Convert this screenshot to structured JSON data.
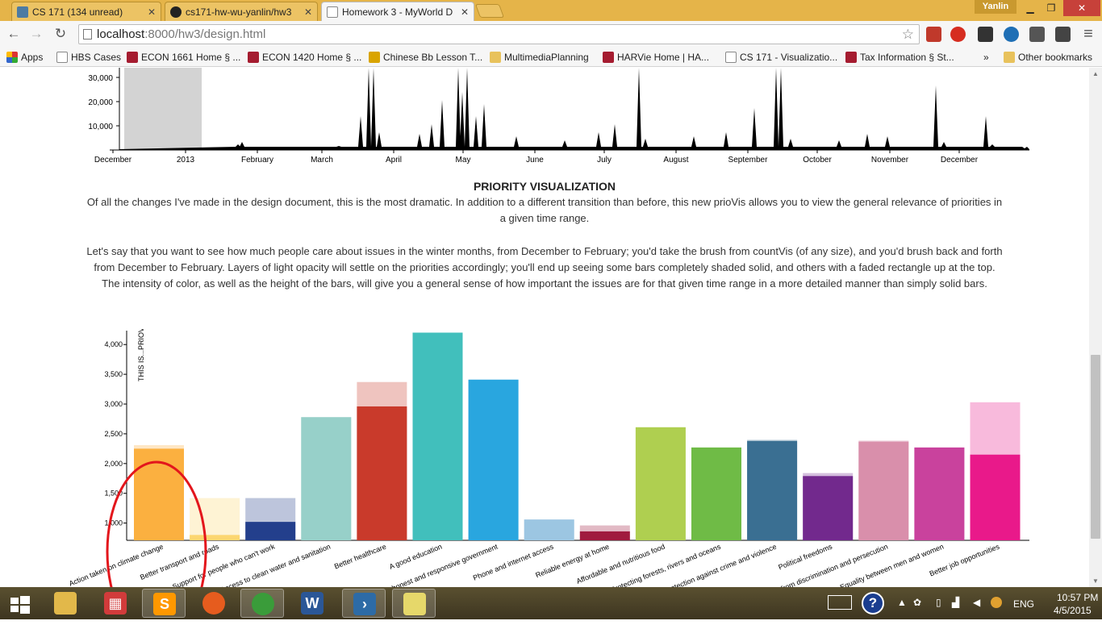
{
  "tabs": [
    {
      "label": "CS 171 (134 unread)",
      "icon": "piazza-icon",
      "color": "#4d7ba3"
    },
    {
      "label": "cs171-hw-wu-yanlin/hw3",
      "icon": "github-icon",
      "color": "#222222"
    },
    {
      "label": "Homework 3 - MyWorld D",
      "icon": "page-icon",
      "color": "#ffffff"
    }
  ],
  "window": {
    "user": "Yanlin",
    "minimize": "▁",
    "maximize": "❐",
    "close": "✕"
  },
  "toolbar": {
    "back": "←",
    "forward": "→",
    "reload": "↻",
    "url_host": "localhost",
    "url_path": ":8000/hw3/design.html",
    "star": "☆",
    "menu": "≡"
  },
  "bookmarks": [
    {
      "label": "Apps",
      "icon": "apps-grid-icon"
    },
    {
      "label": "HBS Cases",
      "icon": "page-icon"
    },
    {
      "label": "ECON 1661 Home § ...",
      "icon": "harvard-shield-icon"
    },
    {
      "label": "ECON 1420 Home § ...",
      "icon": "harvard-shield-icon"
    },
    {
      "label": "Chinese Bb Lesson T...",
      "icon": "trophy-icon"
    },
    {
      "label": "MultimediaPlanning",
      "icon": "folder-icon"
    },
    {
      "label": "HARVie Home | HA...",
      "icon": "harvard-shield-icon"
    },
    {
      "label": "CS 171 - Visualizatio...",
      "icon": "page-icon"
    },
    {
      "label": "Tax Information § St...",
      "icon": "harvard-shield-icon"
    }
  ],
  "bookmarks_overflow": "»",
  "other_bookmarks": "Other bookmarks",
  "count_chart": {
    "y_ticks": [
      "30,000",
      "20,000",
      "10,000"
    ],
    "x_ticks": [
      "December",
      "2013",
      "February",
      "March",
      "April",
      "May",
      "June",
      "July",
      "August",
      "September",
      "October",
      "November",
      "December"
    ],
    "brush_color": "#d3d3d3"
  },
  "priority": {
    "title": "PRIORITY VISUALIZATION",
    "paragraph1": "Of all the changes I've made in the design document, this is the most dramatic. In addition to a different transition than before, this new prioVis allows you to view the general relevance of priorities in a given time range.",
    "paragraph2": "Let's say that you want to see how much people care about issues in the winter months, from December to February; you'd take the brush from countVis (of any size), and you'd brush back and forth from December to February. Layers of light opacity will settle on the priorities accordingly; you'll end up seeing some bars completely shaded solid, and others with a faded rectangle up at the top. The intensity of color, as well as the height of the bars, will give you a general sense of how important the issues are for that given time range in a more detailed manner than simply solid bars."
  },
  "chart_data": {
    "type": "bar",
    "ylabel": "THIS IS...PRIOVIS",
    "y_ticks": [
      "1,000",
      "1,500",
      "2,000",
      "2,500",
      "3,000",
      "3,500",
      "4,000"
    ],
    "ylim": [
      710,
      4220
    ],
    "categories": [
      "Action taken on climate change",
      "Better transport and roads",
      "Support for people who can't work",
      "Access to clean water and sanitation",
      "Better healthcare",
      "A good education",
      "An honest and responsive government",
      "Phone and internet access",
      "Reliable energy at home",
      "Affordable and nutritious food",
      "Protecting forests, rivers and oceans",
      "Protection against crime and violence",
      "Political freedoms",
      "Freedom from discrimination and persecution",
      "Equality between men and women",
      "Better job opportunities"
    ],
    "series": [
      {
        "values": [
          2250,
          800,
          1020,
          2780,
          2960,
          4200,
          3410,
          1060,
          860,
          2610,
          2270,
          2380,
          1790,
          2370,
          2270,
          2150
        ]
      },
      {
        "values": [
          2310,
          1420,
          1420,
          2780,
          3370,
          4200,
          3410,
          1060,
          960,
          2610,
          2270,
          2400,
          1840,
          2390,
          2270,
          3030
        ]
      }
    ],
    "colors": [
      "#fbb040",
      "#fcd670",
      "#233f8c",
      "#97d0c9",
      "#c93a2b",
      "#41bfbc",
      "#29a6df",
      "#9cc6e2",
      "#a01b3e",
      "#afcf50",
      "#6fbb46",
      "#3a6f92",
      "#72298d",
      "#d98fab",
      "#c9429d",
      "#e9198a"
    ],
    "annotation": "hand-drawn red ellipse circling first bar"
  },
  "taskbar": {
    "apps": [
      {
        "name": "explorer-icon",
        "color": "#e2b84a",
        "glyph": ""
      },
      {
        "name": "metro-apps-icon",
        "color": "#d13b3b",
        "glyph": "▦"
      },
      {
        "name": "sublime-text-icon",
        "color": "#ff9800",
        "glyph": "S"
      },
      {
        "name": "firefox-icon",
        "color": "#e65c1e",
        "glyph": ""
      },
      {
        "name": "chrome-icon",
        "color": "#3a9c3a",
        "glyph": ""
      },
      {
        "name": "word-icon",
        "color": "#2b5797",
        "glyph": "W"
      },
      {
        "name": "powershell-icon",
        "color": "#2d6ba6",
        "glyph": "›"
      },
      {
        "name": "sticky-notes-icon",
        "color": "#e6d86a",
        "glyph": ""
      }
    ],
    "lang": "ENG",
    "time": "10:57 PM",
    "date": "4/5/2015"
  }
}
